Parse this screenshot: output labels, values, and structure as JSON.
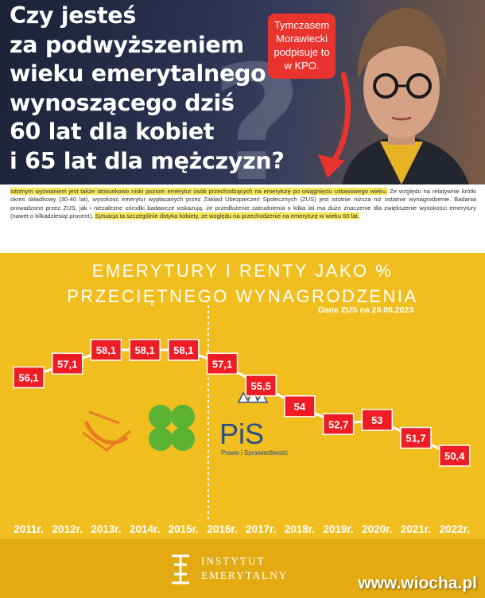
{
  "meme": {
    "headline_lines": [
      "Czy jesteś",
      "za podwyższeniem",
      "wieku emerytalnego",
      "wynoszącego dziś",
      "60 lat dla kobiet",
      "i 65 lat dla mężczyzn?"
    ],
    "bubble_lines": [
      "Tymczasem",
      "Morawiecki",
      "podpisuje to",
      "w KPO."
    ]
  },
  "excerpt": {
    "hl1": "Istotnym wyzwaniem jest także stosunkowo niski poziom emerytur osób przechodzących na emeryturę po osiągnięciu ustawowego wieku.",
    "body": " Ze względu na relatywnie krótki okres składkowy (30-40 lat), wysokość emerytur wypłacanych przez Zakład Ubezpieczeń Społecznych (ZUS) jest istotnie niższa niż ostatnie wynagrodzenie. Badania prowadzone przez ZUS, jak i niezależne ośrodki badawcze wskazują, że przedłużenie zatrudnienia o kilka lat ma duże znaczenie dla zwiększenie wysokości emerytury (nawet o kilkadziesiąt procent). ",
    "hl2": "Sytuacja ta szczególnie dotyka kobiety, ze względu na przechodzenie na emeryturę w wieku 60 lat."
  },
  "chart_data": {
    "type": "line",
    "title": "EMERYTURY I RENTY JAKO %",
    "subtitle": "PRZECIĘTNEGO WYNAGRODZENIA",
    "source": "Dane ZUS na 20.06.2023",
    "categories": [
      "2011r.",
      "2012r.",
      "2013r.",
      "2014r.",
      "2015r.",
      "2016r.",
      "2017r.",
      "2018r.",
      "2019r.",
      "2020r.",
      "2021r.",
      "2022r."
    ],
    "series": [
      {
        "values": [
          56.1,
          57.1,
          58.1,
          58.1,
          58.1,
          57.1,
          55.5,
          54,
          52.7,
          53,
          51.7,
          50.4
        ]
      }
    ],
    "value_labels": [
      "56,1",
      "57,1",
      "58,1",
      "58,1",
      "58,1",
      "57,1",
      "55,5",
      "54",
      "52,7",
      "53",
      "51,7",
      "50,4"
    ],
    "logos": [
      "PiS",
      "Prawo i Sprawiedliwość"
    ],
    "colors": {
      "background": "#f0be1f",
      "box": "#ee1c24",
      "line": "#ffffff",
      "footer": "#e3aa12"
    }
  },
  "footer": {
    "logo_line1": "INSTYTUT",
    "logo_line2": "EMERYTALNY",
    "watermark": "www.wiocha.pl"
  }
}
